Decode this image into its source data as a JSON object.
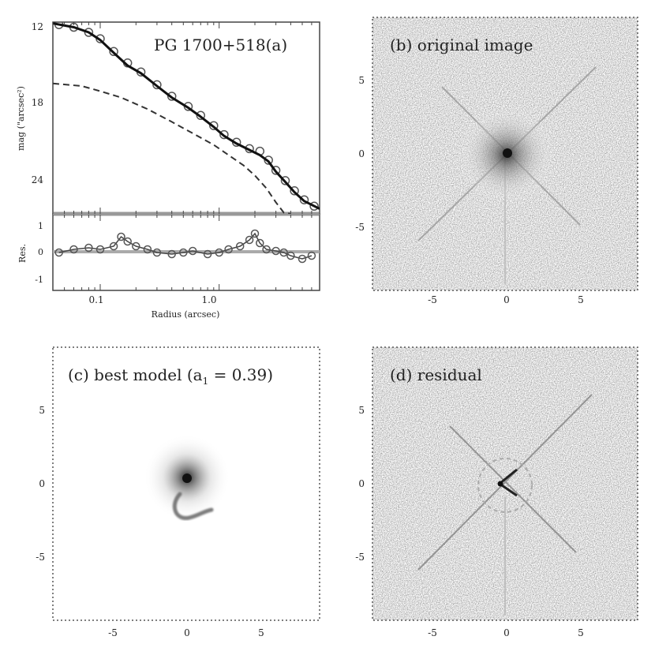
{
  "figure": {
    "panel_a": {
      "title": "PG 1700+518(a)",
      "ylabel_top": "mag (\"arcsec²)",
      "ytick_labels_top": [
        "12",
        "18",
        "24"
      ],
      "ylabel_bottom": "Res.",
      "ytick_labels_bottom": [
        "1",
        "0",
        "-1"
      ],
      "xtick_labels": [
        "0.1",
        "1.0"
      ],
      "xlabel": "Radius (arcsec)"
    },
    "panel_b": {
      "title": "(b) original image"
    },
    "panel_c": {
      "title_main": "(c) best model (a",
      "title_sub": "1",
      "title_end": " = 0.39)"
    },
    "panel_d": {
      "title": "(d) residual"
    },
    "image_tick_labels": [
      "-5",
      "0",
      "5"
    ]
  },
  "chart_data": [
    {
      "type": "line",
      "panel": "a-top",
      "title": "PG 1700+518(a)",
      "xlabel": "Radius (arcsec)",
      "ylabel": "mag (\"arcsec²)",
      "x_scale": "log",
      "xlim": [
        0.04,
        7
      ],
      "ylim": [
        27,
        12
      ],
      "series": [
        {
          "role": "data",
          "x": [
            0.045,
            0.06,
            0.08,
            0.1,
            0.13,
            0.17,
            0.22,
            0.3,
            0.4,
            0.55,
            0.7,
            0.9,
            1.1,
            1.4,
            1.8,
            2.2,
            2.6,
            3.0,
            3.6,
            4.3,
            5.2,
            6.3
          ],
          "y": [
            12.2,
            12.4,
            12.8,
            13.3,
            14.3,
            15.2,
            15.9,
            16.9,
            17.8,
            18.6,
            19.3,
            20.1,
            20.8,
            21.4,
            21.9,
            22.1,
            22.8,
            23.6,
            24.4,
            25.2,
            25.9,
            26.4
          ]
        },
        {
          "role": "model",
          "x": [
            0.04,
            0.06,
            0.08,
            0.1,
            0.13,
            0.17,
            0.22,
            0.3,
            0.4,
            0.55,
            0.7,
            0.9,
            1.1,
            1.4,
            1.8,
            2.2,
            2.6,
            3.0,
            3.6,
            4.3,
            5.2,
            7.0
          ],
          "y": [
            12.1,
            12.4,
            12.8,
            13.4,
            14.4,
            15.4,
            16.0,
            17.0,
            17.9,
            18.7,
            19.4,
            20.2,
            20.9,
            21.5,
            22.0,
            22.4,
            22.9,
            23.7,
            24.5,
            25.3,
            26.0,
            26.6
          ]
        },
        {
          "role": "component",
          "x": [
            0.04,
            0.07,
            0.1,
            0.15,
            0.25,
            0.4,
            0.6,
            0.9,
            1.2,
            1.6,
            2.0,
            2.5,
            3.0,
            3.5,
            4.0
          ],
          "y": [
            16.8,
            17.0,
            17.4,
            17.9,
            18.8,
            19.8,
            20.7,
            21.6,
            22.4,
            23.2,
            24.0,
            25.0,
            26.1,
            26.9,
            27.0
          ]
        }
      ]
    },
    {
      "type": "line",
      "panel": "a-bottom",
      "ylabel": "Res.",
      "x_scale": "log",
      "xlim": [
        0.04,
        7
      ],
      "ylim": [
        -1.2,
        1.2
      ],
      "series": [
        {
          "role": "residual",
          "x": [
            0.045,
            0.06,
            0.08,
            0.1,
            0.13,
            0.15,
            0.17,
            0.2,
            0.25,
            0.3,
            0.4,
            0.5,
            0.6,
            0.8,
            1.0,
            1.2,
            1.5,
            1.8,
            2.0,
            2.2,
            2.5,
            3.0,
            3.5,
            4.0,
            5.0,
            6.0
          ],
          "y": [
            0.0,
            0.1,
            0.15,
            0.1,
            0.2,
            0.5,
            0.35,
            0.2,
            0.1,
            0.0,
            -0.05,
            0.0,
            0.05,
            -0.05,
            0.0,
            0.1,
            0.2,
            0.4,
            0.6,
            0.3,
            0.1,
            0.05,
            0.0,
            -0.1,
            -0.2,
            -0.1
          ]
        }
      ]
    }
  ]
}
